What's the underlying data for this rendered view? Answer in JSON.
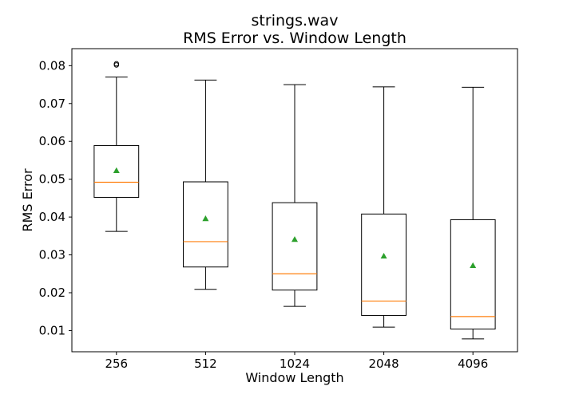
{
  "chart_data": {
    "type": "box",
    "title_line1": "strings.wav",
    "title_line2": "RMS Error vs. Window Length",
    "xlabel": "Window Length",
    "ylabel": "RMS Error",
    "categories": [
      "256",
      "512",
      "1024",
      "2048",
      "4096"
    ],
    "ylim": [
      0.0044,
      0.0845
    ],
    "yticks": [
      {
        "value": 0.01,
        "label": "0.01"
      },
      {
        "value": 0.02,
        "label": "0.02"
      },
      {
        "value": 0.03,
        "label": "0.03"
      },
      {
        "value": 0.04,
        "label": "0.04"
      },
      {
        "value": 0.05,
        "label": "0.05"
      },
      {
        "value": 0.06,
        "label": "0.06"
      },
      {
        "value": 0.07,
        "label": "0.07"
      },
      {
        "value": 0.08,
        "label": "0.08"
      }
    ],
    "boxes": [
      {
        "category": "256",
        "whisker_low": 0.0362,
        "q1": 0.0452,
        "median": 0.0492,
        "q3": 0.0589,
        "whisker_high": 0.077,
        "mean": 0.0523,
        "outliers": [
          0.0802,
          0.0805
        ]
      },
      {
        "category": "512",
        "whisker_low": 0.0209,
        "q1": 0.0268,
        "median": 0.0335,
        "q3": 0.0493,
        "whisker_high": 0.0762,
        "mean": 0.0396,
        "outliers": []
      },
      {
        "category": "1024",
        "whisker_low": 0.0164,
        "q1": 0.0207,
        "median": 0.025,
        "q3": 0.0438,
        "whisker_high": 0.075,
        "mean": 0.0341,
        "outliers": []
      },
      {
        "category": "2048",
        "whisker_low": 0.0109,
        "q1": 0.014,
        "median": 0.0178,
        "q3": 0.0408,
        "whisker_high": 0.0744,
        "mean": 0.0297,
        "outliers": []
      },
      {
        "category": "4096",
        "whisker_low": 0.0078,
        "q1": 0.0104,
        "median": 0.0137,
        "q3": 0.0393,
        "whisker_high": 0.0743,
        "mean": 0.0272,
        "outliers": []
      }
    ],
    "colors": {
      "box": "#000000",
      "median": "#ff7f0e",
      "mean": "#2ca02c",
      "outlier": "#000000"
    },
    "grid": false,
    "legend": "none"
  }
}
